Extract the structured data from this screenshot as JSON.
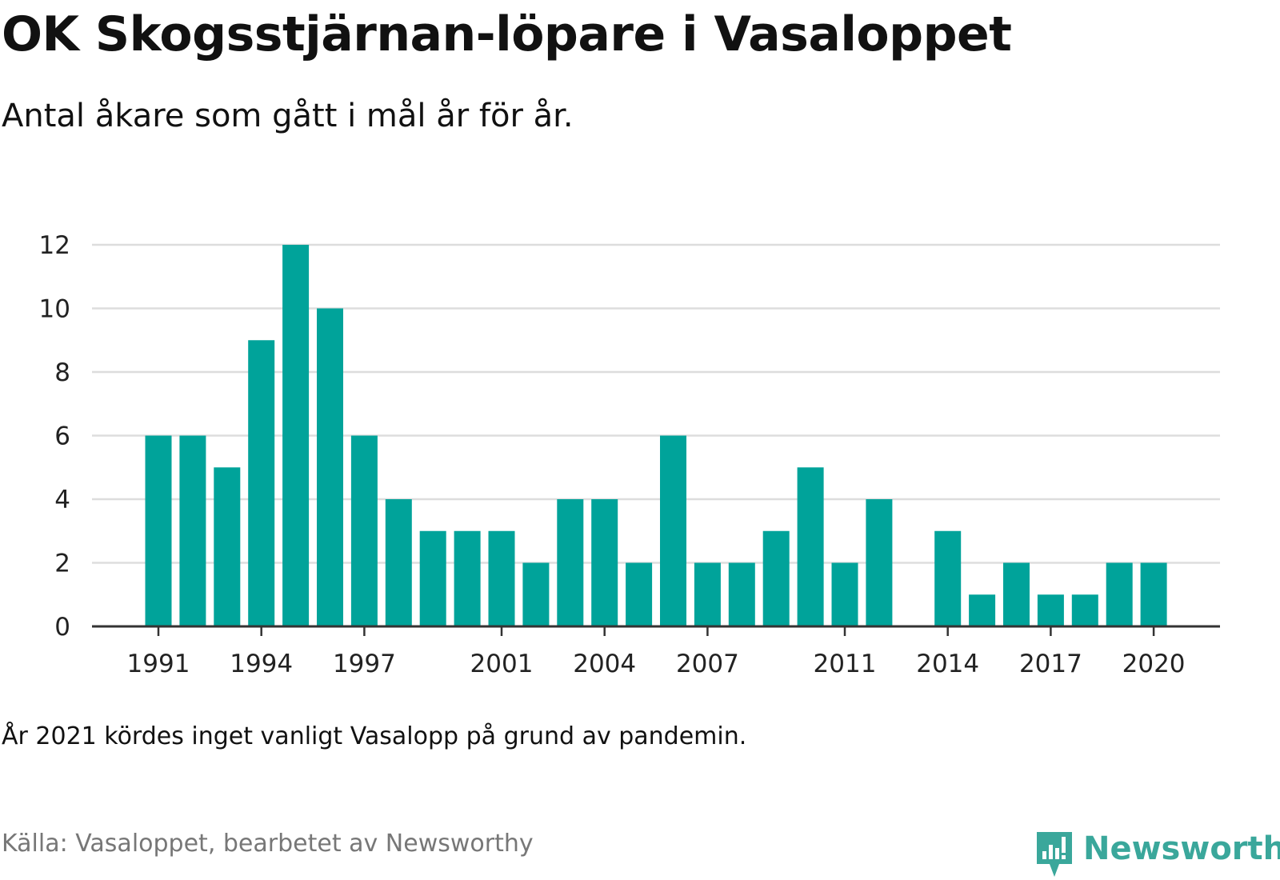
{
  "title": "OK Skogsstjärnan-löpare i Vasaloppet",
  "subtitle": "Antal åkare som gått i mål år för år.",
  "note": "År 2021 kördes inget vanligt Vasalopp på grund av pandemin.",
  "source": "Källa: Vasaloppet, bearbetet av Newsworthy",
  "brand": {
    "name": "Newsworthy",
    "icon": "newsworthy-logo-icon",
    "color": "#3aa79b"
  },
  "colors": {
    "bar": "#00a39a",
    "grid": "#dddddd",
    "axis": "#333333"
  },
  "chart_data": {
    "type": "bar",
    "categories": [
      "1991",
      "1992",
      "1993",
      "1994",
      "1995",
      "1996",
      "1997",
      "1998",
      "1999",
      "2000",
      "2001",
      "2002",
      "2003",
      "2004",
      "2005",
      "2006",
      "2007",
      "2008",
      "2009",
      "2010",
      "2011",
      "2012",
      "2013",
      "2014",
      "2015",
      "2016",
      "2017",
      "2018",
      "2019",
      "2020"
    ],
    "values": [
      6,
      6,
      5,
      9,
      12,
      10,
      6,
      4,
      3,
      3,
      3,
      2,
      4,
      4,
      2,
      6,
      2,
      2,
      3,
      5,
      2,
      4,
      0,
      3,
      1,
      2,
      1,
      1,
      2,
      2
    ],
    "ylim": [
      0,
      12
    ],
    "y_ticks": [
      "0",
      "2",
      "4",
      "6",
      "8",
      "10",
      "12"
    ],
    "x_tick_labels": [
      "1991",
      "1994",
      "1997",
      "2001",
      "2004",
      "2007",
      "2011",
      "2014",
      "2017",
      "2020"
    ],
    "xlabel": "",
    "ylabel": "",
    "grid": true
  }
}
